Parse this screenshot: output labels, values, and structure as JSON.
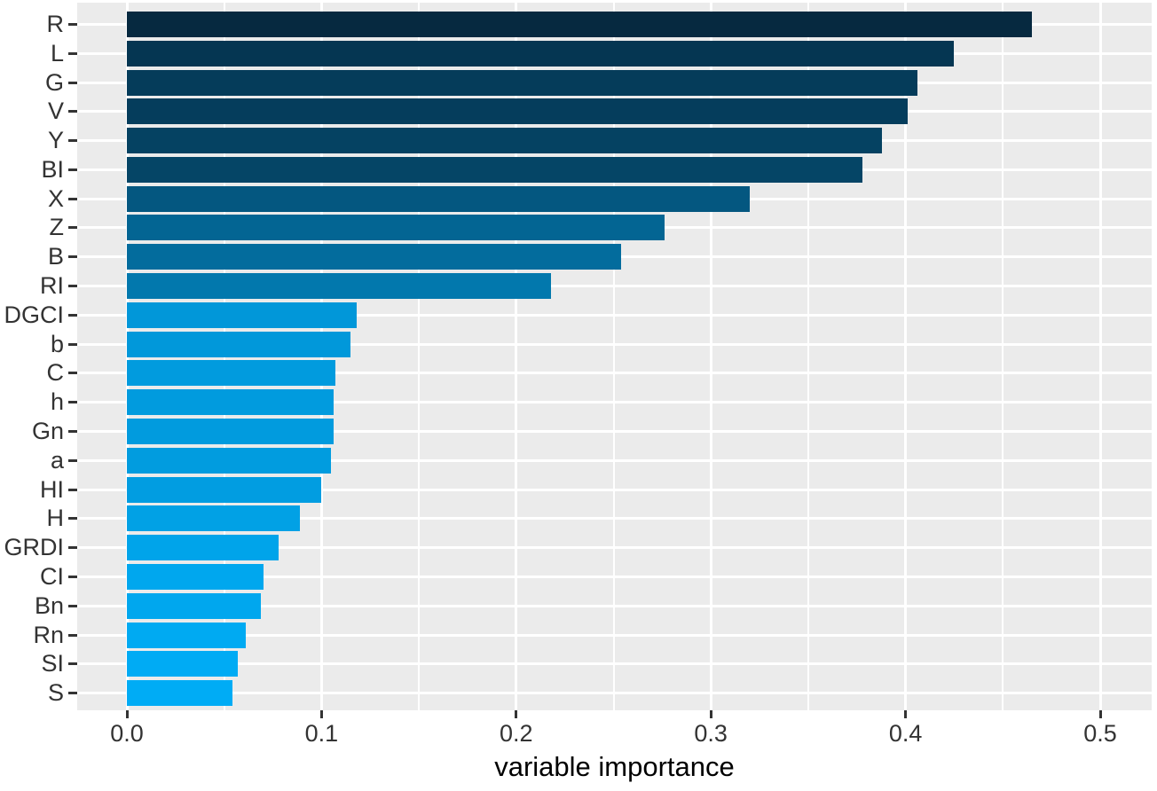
{
  "chart_data": {
    "type": "bar",
    "orientation": "horizontal",
    "title": "",
    "xlabel": "variable importance",
    "ylabel": "",
    "legend": "none",
    "grid": "white major and minor gridlines on grey panel",
    "xlim": [
      -0.026,
      0.526
    ],
    "x_tick_values": [
      0.0,
      0.1,
      0.2,
      0.3,
      0.4,
      0.5
    ],
    "x_tick_labels": [
      "0.0",
      "0.1",
      "0.2",
      "0.3",
      "0.4",
      "0.5"
    ],
    "x_minor_tick_values": [
      0.05,
      0.15,
      0.25,
      0.35,
      0.45
    ],
    "categories": [
      "R",
      "L",
      "G",
      "V",
      "Y",
      "BI",
      "X",
      "Z",
      "B",
      "RI",
      "DGCI",
      "b",
      "C",
      "h",
      "Gn",
      "a",
      "HI",
      "H",
      "GRDI",
      "CI",
      "Bn",
      "Rn",
      "SI",
      "S"
    ],
    "values": [
      0.465,
      0.425,
      0.406,
      0.401,
      0.388,
      0.378,
      0.32,
      0.276,
      0.254,
      0.218,
      0.118,
      0.115,
      0.107,
      0.106,
      0.106,
      0.105,
      0.1,
      0.089,
      0.078,
      0.07,
      0.069,
      0.061,
      0.057,
      0.054
    ],
    "bar_colors": [
      "#062940",
      "#053652",
      "#053c5a",
      "#053d5c",
      "#054262",
      "#054566",
      "#045780",
      "#036593",
      "#036c9d",
      "#0278ad",
      "#0197d9",
      "#0198da",
      "#019bde",
      "#019bde",
      "#019bde",
      "#019cdf",
      "#019de1",
      "#01a1e5",
      "#00a4ea",
      "#00a7ee",
      "#00a7ee",
      "#00aaf2",
      "#00abf4",
      "#00acf5"
    ],
    "fill_gradient": {
      "low_value_color": "#00acf5",
      "high_value_color": "#062940"
    }
  },
  "style": {
    "page_background": "#ffffff",
    "panel_background": "#ebebeb",
    "gridline_color": "#ffffff",
    "tick_mark_color": "#333333",
    "axis_text_color": "#333333",
    "axis_title_color": "#000000"
  }
}
